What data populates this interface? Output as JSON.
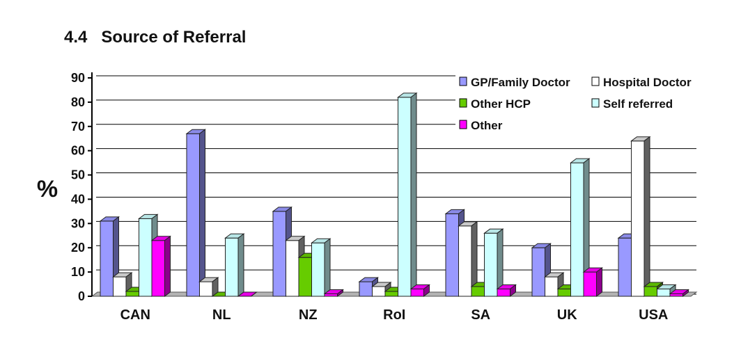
{
  "section": {
    "number": "4.4",
    "title": "Source of Referral"
  },
  "chart_data": {
    "type": "bar",
    "ylabel": "%",
    "xlabel": "",
    "ylim": [
      0,
      90
    ],
    "yticks": [
      0,
      10,
      20,
      30,
      40,
      50,
      60,
      70,
      80,
      90
    ],
    "grid": true,
    "legend_position": "top-right",
    "categories": [
      "CAN",
      "NL",
      "NZ",
      "RoI",
      "SA",
      "UK",
      "USA"
    ],
    "series": [
      {
        "name": "GP/Family Doctor",
        "color": "#9999ff",
        "values": [
          31,
          67,
          35,
          6,
          34,
          20,
          24
        ]
      },
      {
        "name": "Hospital Doctor",
        "color": "#ffffff",
        "values": [
          8,
          6,
          23,
          4,
          29,
          8,
          64
        ]
      },
      {
        "name": "Other HCP",
        "color": "#66cc00",
        "values": [
          2,
          0,
          16,
          2,
          4,
          3,
          4
        ]
      },
      {
        "name": "Self referred",
        "color": "#ccffff",
        "values": [
          32,
          24,
          22,
          82,
          26,
          55,
          3
        ]
      },
      {
        "name": "Other",
        "color": "#ff00ff",
        "values": [
          23,
          0,
          1,
          3,
          3,
          10,
          1
        ]
      }
    ]
  }
}
